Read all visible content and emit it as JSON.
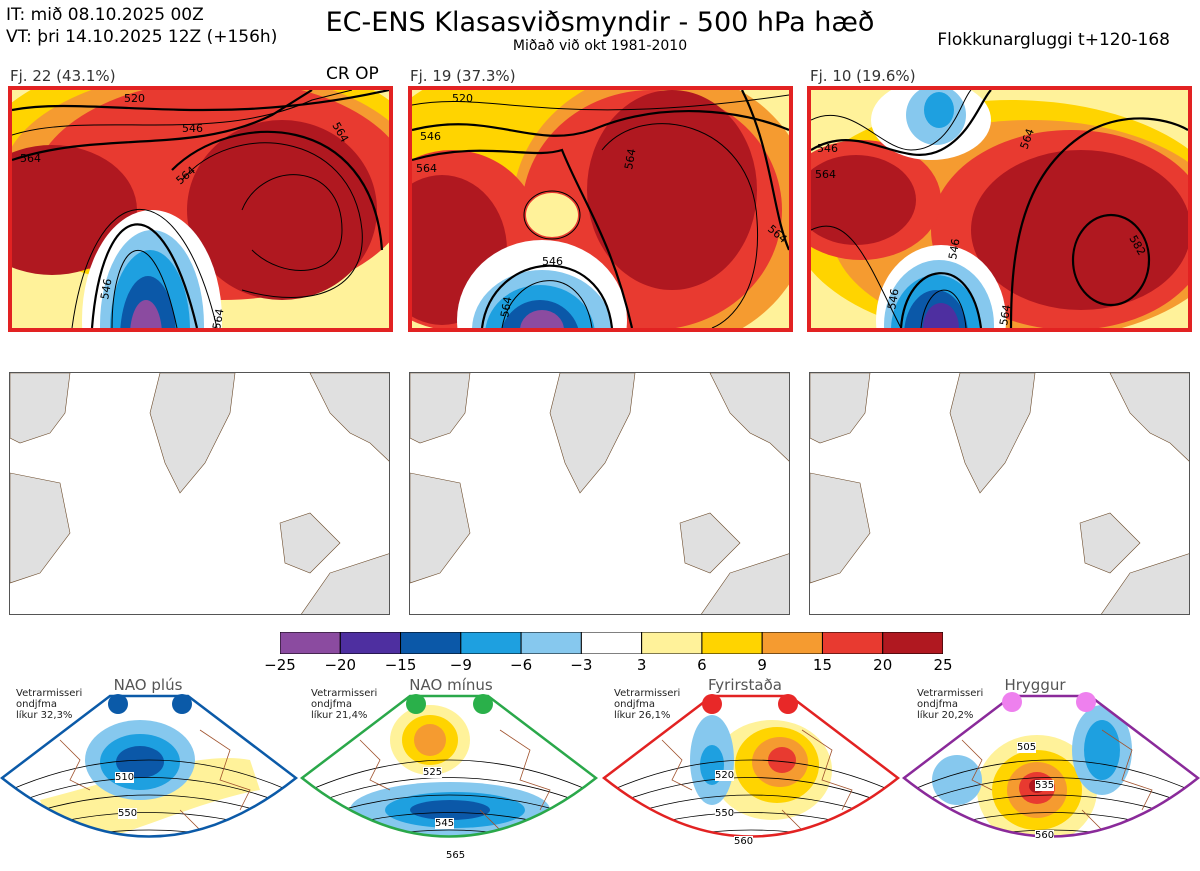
{
  "header": {
    "init_time": "IT: mið 08.10.2025 00Z",
    "valid_time": "VT: þri 14.10.2025 12Z  (+156h)",
    "title": "EC-ENS Klasasviðsmyndir - 500 hPa hæð",
    "subtitle": "Miðað við okt 1981-2010",
    "window": "Flokkunargluggi t+120-168"
  },
  "panels": [
    {
      "label": "Fj. 22 (43.1%)",
      "tag": "CR OP",
      "contour_labels": [
        "546",
        "564",
        "564",
        "564",
        "546",
        "564",
        "520"
      ]
    },
    {
      "label": "Fj. 19 (37.3%)",
      "tag": "",
      "contour_labels": [
        "546",
        "564",
        "564",
        "564",
        "546",
        "520",
        "564"
      ]
    },
    {
      "label": "Fj. 10 (19.6%)",
      "tag": "",
      "contour_labels": [
        "546",
        "564",
        "546",
        "564",
        "582",
        "546",
        "564"
      ]
    }
  ],
  "colorbar": {
    "ticks": [
      "−25",
      "−20",
      "−15",
      "−9",
      "−6",
      "−3",
      "3",
      "6",
      "9",
      "15",
      "20",
      "25"
    ],
    "colors": [
      "#8b4ba0",
      "#4e2fa0",
      "#0b58a8",
      "#1ea0e0",
      "#86c8ee",
      "#ffffff",
      "#fff29a",
      "#ffd400",
      "#f59b30",
      "#e83a30",
      "#b01820"
    ]
  },
  "regimes": [
    {
      "name": "NAO plús",
      "info_line1": "Vetrarmisseri",
      "info_line2": "ondjfma",
      "info_line3": "líkur 32,3%",
      "color": "#0b5aa8",
      "dot_color": "#0b5aa8",
      "labels": [
        "510",
        "550"
      ]
    },
    {
      "name": "NAO mínus",
      "info_line1": "Vetrarmisseri",
      "info_line2": "ondjfma",
      "info_line3": "líkur 21,4%",
      "color": "#2aa84a",
      "dot_color": "#2ab04a",
      "labels": [
        "525",
        "545",
        "565"
      ]
    },
    {
      "name": "Fyrirstaða",
      "info_line1": "Vetrarmisseri",
      "info_line2": "ondjfma",
      "info_line3": "líkur 26,1%",
      "color": "#e22222",
      "dot_color": "#e82828",
      "labels": [
        "520",
        "550",
        "560"
      ]
    },
    {
      "name": "Hryggur",
      "info_line1": "Vetrarmisseri",
      "info_line2": "ondjfma",
      "info_line3": "líkur 20,2%",
      "color": "#8a2a9a",
      "dot_color": "#ee80ee",
      "labels": [
        "505",
        "535",
        "560"
      ]
    }
  ],
  "chart_data": {
    "type": "heatmap",
    "title": "EC-ENS Klasasviðsmyndir - 500 hPa hæð",
    "colorbar_ticks": [
      -25,
      -20,
      -15,
      -9,
      -6,
      -3,
      3,
      6,
      9,
      15,
      20,
      25
    ],
    "clusters": [
      {
        "label": "Fj. 22 (43.1%)",
        "members": 22,
        "percent": 43.1
      },
      {
        "label": "Fj. 19 (37.3%)",
        "members": 19,
        "percent": 37.3
      },
      {
        "label": "Fj. 10 (19.6%)",
        "members": 10,
        "percent": 19.6
      }
    ],
    "regimes": [
      {
        "name": "NAO plús",
        "likur_percent": 32.3
      },
      {
        "name": "NAO mínus",
        "likur_percent": 21.4
      },
      {
        "name": "Fyrirstaða",
        "likur_percent": 26.1
      },
      {
        "name": "Hryggur",
        "likur_percent": 20.2
      }
    ]
  }
}
